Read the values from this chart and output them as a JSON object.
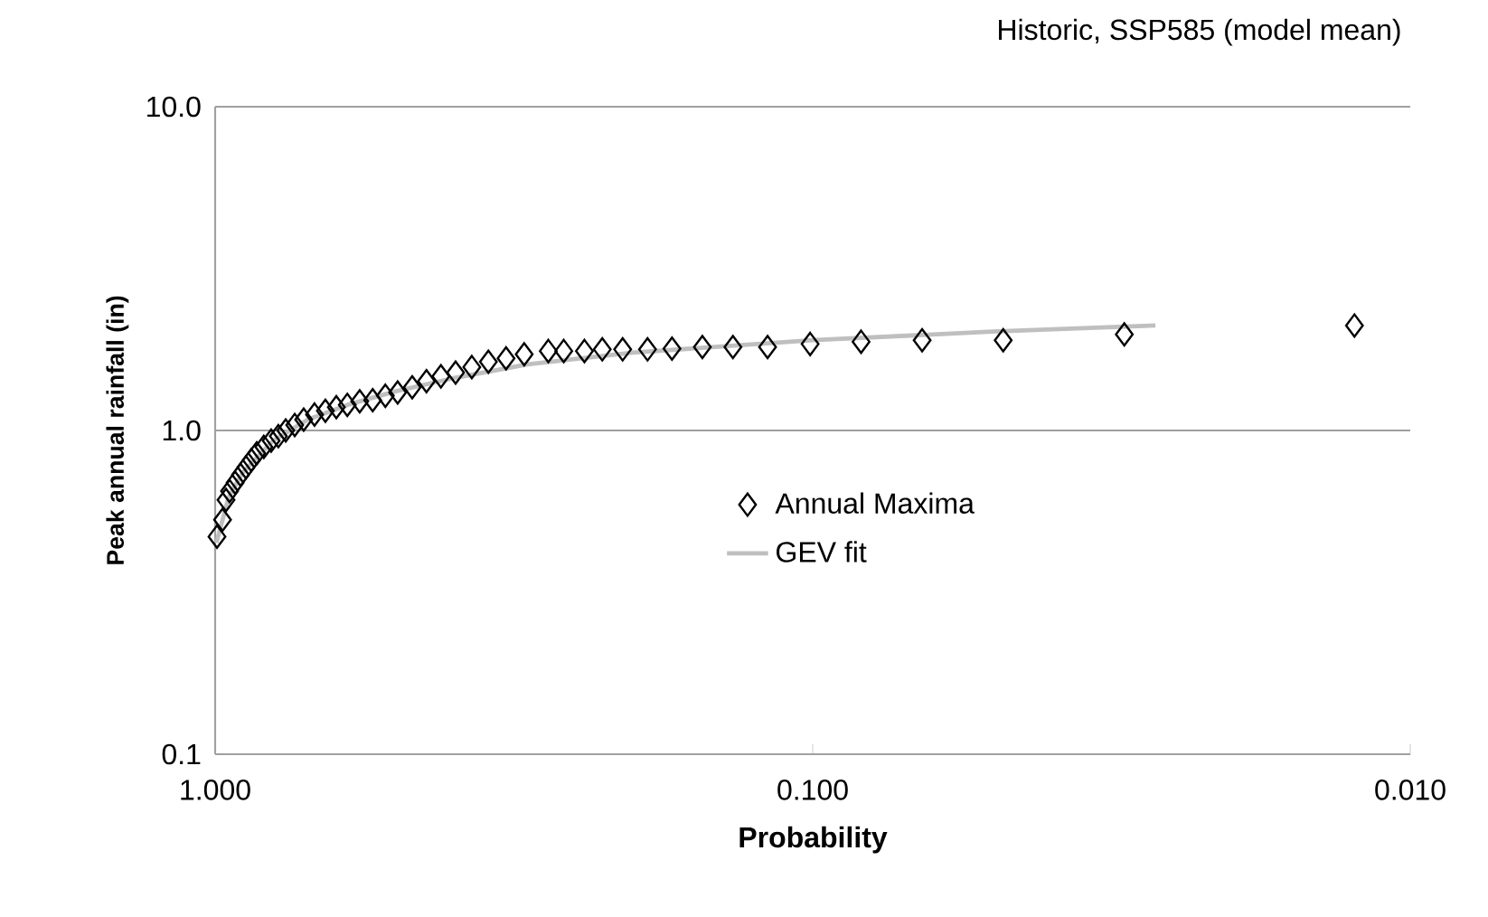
{
  "chart_data": {
    "type": "scatter",
    "title": "Historic, SSP585 (model mean)",
    "xlabel": "Probability",
    "ylabel": "Peak annual rainfall (in)",
    "log": "xy",
    "grid": "y",
    "legend": "center",
    "xlim": [
      1,
      0.01
    ],
    "ylim": [
      0.1,
      10
    ],
    "xticks": [
      {
        "value": 1,
        "label": "1.000"
      },
      {
        "value": 0.1,
        "label": "0.100"
      },
      {
        "value": 0.01,
        "label": "0.010"
      }
    ],
    "yticks": [
      {
        "value": 0.1,
        "label": "0.1"
      },
      {
        "value": 1,
        "label": "1.0"
      },
      {
        "value": 10,
        "label": "10.0"
      }
    ],
    "series": [
      {
        "name": "Annual Maxima",
        "marker": "diamond",
        "color": "#000000",
        "x": [
          0.993,
          0.972,
          0.959,
          0.946,
          0.926,
          0.907,
          0.888,
          0.87,
          0.852,
          0.829,
          0.806,
          0.784,
          0.762,
          0.736,
          0.711,
          0.682,
          0.654,
          0.627,
          0.601,
          0.573,
          0.545,
          0.519,
          0.495,
          0.468,
          0.443,
          0.419,
          0.396,
          0.372,
          0.349,
          0.326,
          0.304,
          0.277,
          0.261,
          0.241,
          0.225,
          0.208,
          0.189,
          0.172,
          0.153,
          0.136,
          0.119,
          0.101,
          0.083,
          0.0656,
          0.048,
          0.0301,
          0.0124
        ],
        "values": [
          0.47,
          0.53,
          0.61,
          0.65,
          0.69,
          0.73,
          0.77,
          0.81,
          0.85,
          0.89,
          0.93,
          0.96,
          1.0,
          1.04,
          1.08,
          1.12,
          1.15,
          1.18,
          1.2,
          1.23,
          1.24,
          1.28,
          1.31,
          1.36,
          1.42,
          1.47,
          1.51,
          1.57,
          1.63,
          1.67,
          1.72,
          1.76,
          1.76,
          1.76,
          1.78,
          1.78,
          1.78,
          1.79,
          1.81,
          1.81,
          1.81,
          1.85,
          1.88,
          1.9,
          1.9,
          1.98,
          2.11
        ]
      },
      {
        "name": "GEV fit",
        "type": "line",
        "marker": "none",
        "color": "#bfbfbf",
        "x": [
          0.995,
          0.95,
          0.9,
          0.8,
          0.7,
          0.6,
          0.5,
          0.4,
          0.3,
          0.2,
          0.1,
          0.05,
          0.0267
        ],
        "values": [
          0.45,
          0.62,
          0.74,
          0.93,
          1.08,
          1.2,
          1.32,
          1.45,
          1.6,
          1.74,
          1.9,
          2.02,
          2.11
        ]
      }
    ]
  }
}
